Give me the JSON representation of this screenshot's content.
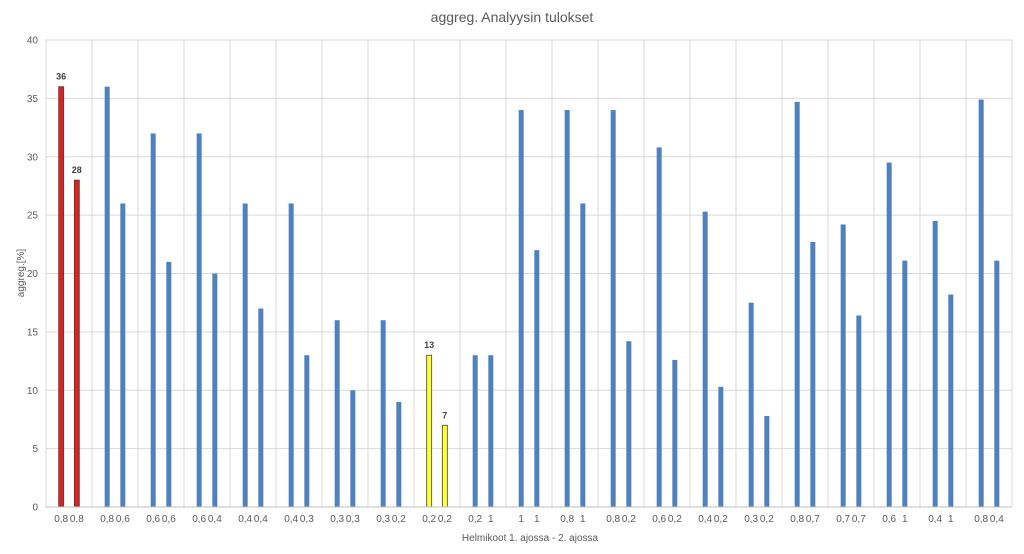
{
  "chart_data": {
    "type": "bar",
    "title": "aggreg.  Analyysin tulokset",
    "xlabel": "Helmikoot 1. ajossa - 2. ajossa",
    "ylabel": "aggreg.[%]",
    "ylim": [
      0,
      40
    ],
    "yticks": [
      "0",
      "5",
      "10",
      "15",
      "20",
      "25",
      "30",
      "35",
      "40"
    ],
    "grid": true,
    "legend": "none",
    "colors": {
      "default": "#4F81BD",
      "highlight_red": "#E02020",
      "highlight_yellow": "#FFFF33",
      "outline": "#404040",
      "grid": "#D9D9D9"
    },
    "bars": [
      {
        "label": "0,8",
        "value": 36,
        "color": "red",
        "data_label": "36"
      },
      {
        "label": "0,8",
        "value": 28,
        "color": "red",
        "data_label": "28"
      },
      {
        "label": "0,8",
        "value": 36,
        "color": "blue",
        "data_label": ""
      },
      {
        "label": "0,6",
        "value": 26,
        "color": "blue",
        "data_label": ""
      },
      {
        "label": "0,6",
        "value": 32,
        "color": "blue",
        "data_label": ""
      },
      {
        "label": "0,6",
        "value": 21,
        "color": "blue",
        "data_label": ""
      },
      {
        "label": "0,6",
        "value": 32,
        "color": "blue",
        "data_label": ""
      },
      {
        "label": "0,4",
        "value": 20,
        "color": "blue",
        "data_label": ""
      },
      {
        "label": "0,4",
        "value": 26,
        "color": "blue",
        "data_label": ""
      },
      {
        "label": "0,4",
        "value": 17,
        "color": "blue",
        "data_label": ""
      },
      {
        "label": "0,4",
        "value": 26,
        "color": "blue",
        "data_label": ""
      },
      {
        "label": "0,3",
        "value": 13,
        "color": "blue",
        "data_label": ""
      },
      {
        "label": "0,3",
        "value": 16,
        "color": "blue",
        "data_label": ""
      },
      {
        "label": "0,3",
        "value": 10,
        "color": "blue",
        "data_label": ""
      },
      {
        "label": "0,3",
        "value": 16,
        "color": "blue",
        "data_label": ""
      },
      {
        "label": "0,2",
        "value": 9,
        "color": "blue",
        "data_label": ""
      },
      {
        "label": "0,2",
        "value": 13,
        "color": "yellow",
        "data_label": "13"
      },
      {
        "label": "0,2",
        "value": 7,
        "color": "yellow",
        "data_label": "7"
      },
      {
        "label": "0,2",
        "value": 13,
        "color": "blue",
        "data_label": ""
      },
      {
        "label": "1",
        "value": 13,
        "color": "blue",
        "data_label": ""
      },
      {
        "label": "1",
        "value": 34,
        "color": "blue",
        "data_label": ""
      },
      {
        "label": "1",
        "value": 22,
        "color": "blue",
        "data_label": ""
      },
      {
        "label": "0,8",
        "value": 34,
        "color": "blue",
        "data_label": ""
      },
      {
        "label": "1",
        "value": 26,
        "color": "blue",
        "data_label": ""
      },
      {
        "label": "0,8",
        "value": 34,
        "color": "blue",
        "data_label": ""
      },
      {
        "label": "0,2",
        "value": 14.2,
        "color": "blue",
        "data_label": ""
      },
      {
        "label": "0,6",
        "value": 30.8,
        "color": "blue",
        "data_label": ""
      },
      {
        "label": "0,2",
        "value": 12.6,
        "color": "blue",
        "data_label": ""
      },
      {
        "label": "0,4",
        "value": 25.3,
        "color": "blue",
        "data_label": ""
      },
      {
        "label": "0,2",
        "value": 10.3,
        "color": "blue",
        "data_label": ""
      },
      {
        "label": "0,3",
        "value": 17.5,
        "color": "blue",
        "data_label": ""
      },
      {
        "label": "0,2",
        "value": 7.8,
        "color": "blue",
        "data_label": ""
      },
      {
        "label": "0,8",
        "value": 34.7,
        "color": "blue",
        "data_label": ""
      },
      {
        "label": "0,7",
        "value": 22.7,
        "color": "blue",
        "data_label": ""
      },
      {
        "label": "0,7",
        "value": 24.2,
        "color": "blue",
        "data_label": ""
      },
      {
        "label": "0,7",
        "value": 16.4,
        "color": "blue",
        "data_label": ""
      },
      {
        "label": "0,6",
        "value": 29.5,
        "color": "blue",
        "data_label": ""
      },
      {
        "label": "1",
        "value": 21.1,
        "color": "blue",
        "data_label": ""
      },
      {
        "label": "0,4",
        "value": 24.5,
        "color": "blue",
        "data_label": ""
      },
      {
        "label": "1",
        "value": 18.2,
        "color": "blue",
        "data_label": ""
      },
      {
        "label": "0,8",
        "value": 34.9,
        "color": "blue",
        "data_label": ""
      },
      {
        "label": "0,4",
        "value": 21.1,
        "color": "blue",
        "data_label": ""
      }
    ]
  }
}
